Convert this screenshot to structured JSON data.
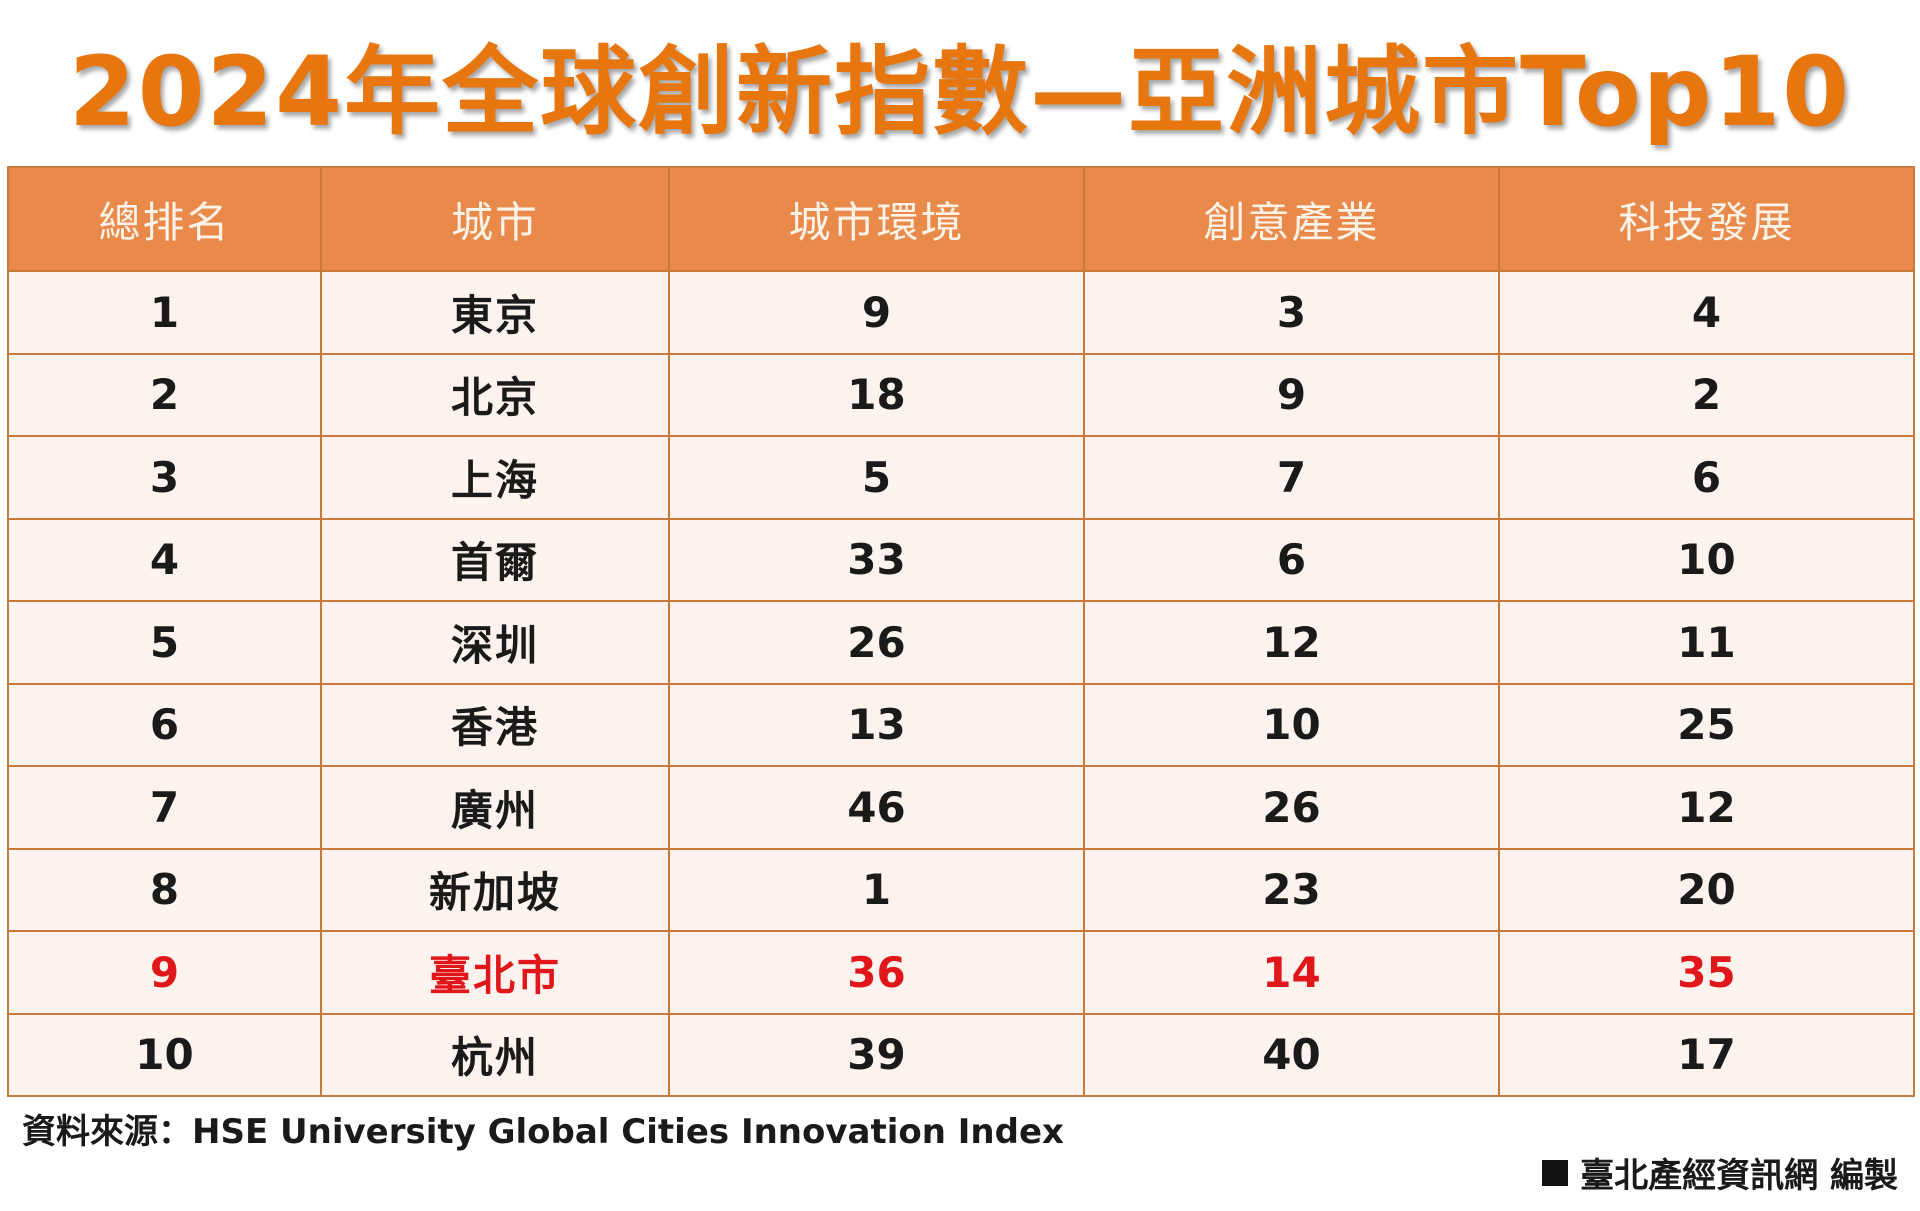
{
  "title": "2024年全球創新指數—亞洲城市Top10",
  "highlight_color": "#E1161B",
  "header_color": "#E9894A",
  "title_color": "#E8760F",
  "chart_data": {
    "type": "table",
    "title": "2024年全球創新指數—亞洲城市Top10",
    "columns": [
      "總排名",
      "城市",
      "城市環境",
      "創意產業",
      "科技發展"
    ],
    "rows": [
      {
        "rank": "1",
        "city": "東京",
        "env": "9",
        "creative": "3",
        "tech": "4"
      },
      {
        "rank": "2",
        "city": "北京",
        "env": "18",
        "creative": "9",
        "tech": "2"
      },
      {
        "rank": "3",
        "city": "上海",
        "env": "5",
        "creative": "7",
        "tech": "6"
      },
      {
        "rank": "4",
        "city": "首爾",
        "env": "33",
        "creative": "6",
        "tech": "10"
      },
      {
        "rank": "5",
        "city": "深圳",
        "env": "26",
        "creative": "12",
        "tech": "11"
      },
      {
        "rank": "6",
        "city": "香港",
        "env": "13",
        "creative": "10",
        "tech": "25"
      },
      {
        "rank": "7",
        "city": "廣州",
        "env": "46",
        "creative": "26",
        "tech": "12"
      },
      {
        "rank": "8",
        "city": "新加坡",
        "env": "1",
        "creative": "23",
        "tech": "20"
      },
      {
        "rank": "9",
        "city": "臺北市",
        "env": "36",
        "creative": "14",
        "tech": "35",
        "highlight": true
      },
      {
        "rank": "10",
        "city": "杭州",
        "env": "39",
        "creative": "40",
        "tech": "17"
      }
    ]
  },
  "footer": {
    "source": "資料來源：HSE University Global Cities Innovation Index",
    "credit": "臺北產經資訊網 編製"
  }
}
